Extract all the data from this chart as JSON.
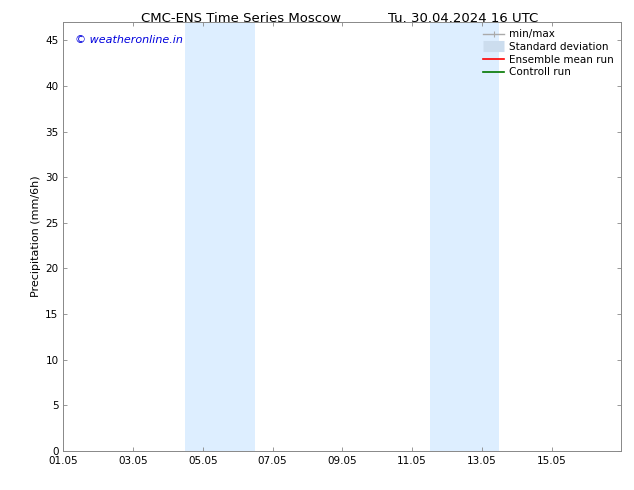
{
  "title_left": "CMC-ENS Time Series Moscow",
  "title_right": "Tu. 30.04.2024 16 UTC",
  "ylabel": "Precipitation (mm/6h)",
  "watermark": "© weatheronline.in",
  "watermark_color": "#0000dd",
  "xlim_start": 0,
  "xlim_end": 16,
  "ylim": [
    0,
    47
  ],
  "yticks": [
    0,
    5,
    10,
    15,
    20,
    25,
    30,
    35,
    40,
    45
  ],
  "xtick_labels": [
    "01.05",
    "03.05",
    "05.05",
    "07.05",
    "09.05",
    "11.05",
    "13.05",
    "15.05"
  ],
  "xtick_positions": [
    0,
    2,
    4,
    6,
    8,
    10,
    12,
    14
  ],
  "shaded_bands": [
    {
      "xmin": 3.5,
      "xmax": 5.5
    },
    {
      "xmin": 10.5,
      "xmax": 12.5
    }
  ],
  "shaded_color": "#ddeeff",
  "background_color": "#ffffff",
  "legend_items": [
    {
      "label": "min/max",
      "color": "#aaaaaa",
      "lw": 1.0,
      "style": "caps"
    },
    {
      "label": "Standard deviation",
      "color": "#ccddee",
      "lw": 8,
      "style": "thick"
    },
    {
      "label": "Ensemble mean run",
      "color": "#ff0000",
      "lw": 1.2,
      "style": "line"
    },
    {
      "label": "Controll run",
      "color": "#007700",
      "lw": 1.2,
      "style": "line"
    }
  ],
  "title_fontsize": 9.5,
  "tick_fontsize": 7.5,
  "ylabel_fontsize": 8,
  "watermark_fontsize": 8,
  "legend_fontsize": 7.5,
  "spine_color": "#888888"
}
